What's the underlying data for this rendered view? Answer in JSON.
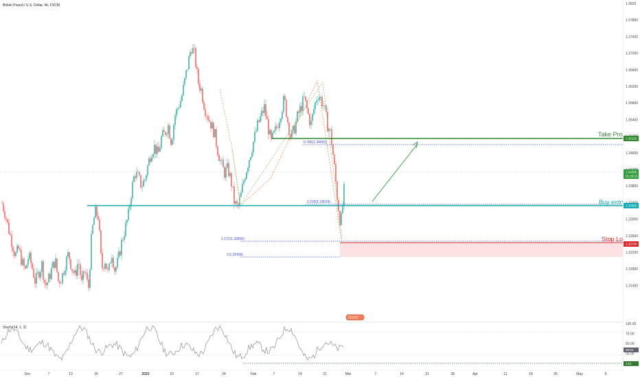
{
  "header": {
    "symbol_title": "British Pound / U.S. Dollar, 4h, FXCM"
  },
  "chart_data": {
    "type": "candlestick",
    "title": "British Pound / U.S. Dollar, 4h, FXCM",
    "y_axis": {
      "ticks": [
        "1.3820",
        "1.37800",
        "1.37400",
        "1.37000",
        "1.36600",
        "1.36200",
        "1.35800",
        "1.35400",
        "1.35000",
        "1.34600",
        "1.34200",
        "1.33800",
        "1.33400",
        "1.33000",
        "1.32600",
        "1.32200",
        "1.31800",
        "1.31400"
      ],
      "ylim": [
        1.312,
        1.384
      ]
    },
    "x_axis": {
      "ticks": [
        "Dec",
        "7",
        "13",
        "20",
        "27",
        "2022",
        "10",
        "17",
        "24",
        "Feb",
        "7",
        "14",
        "21",
        "Mar",
        "7",
        "14",
        "21",
        "28",
        "Apr",
        "11",
        "18",
        "25",
        "May",
        "9"
      ],
      "bold_ticks": [
        "2022"
      ]
    },
    "price_path": [
      [
        1.338,
        1.3355,
        1.332,
        1.329,
        1.326,
        1.3275,
        1.3245,
        1.3225,
        1.326,
        1.3235,
        1.32,
        1.322,
        1.324,
        1.319,
        1.3205,
        1.323,
        1.325,
        1.32
      ],
      [
        1.321,
        1.324,
        1.3265,
        1.3232,
        1.3213,
        1.325,
        1.3195,
        1.323,
        1.318,
        1.331,
        1.336,
        1.335,
        1.323,
        1.325,
        1.3215,
        1.327,
        1.3225,
        1.325
      ],
      [
        1.329,
        1.332,
        1.335,
        1.341,
        1.345,
        1.344,
        1.342,
        1.3435,
        1.347,
        1.35,
        1.351,
        1.349,
        1.353,
        1.354,
        1.356,
        1.352,
        1.358,
        1.36
      ],
      [
        1.362,
        1.366,
        1.37,
        1.374,
        1.372,
        1.366,
        1.364,
        1.36,
        1.358,
        1.356,
        1.354,
        1.35,
        1.347,
        1.345,
        1.346,
        1.343,
        1.338,
        1.337
      ],
      [
        1.34,
        1.344,
        1.347,
        1.35,
        1.353,
        1.356,
        1.358,
        1.36,
        1.356,
        1.352,
        1.354,
        1.356,
        1.359,
        1.362,
        1.357,
        1.353,
        1.355,
        1.358
      ],
      [
        1.36,
        1.362,
        1.359,
        1.356,
        1.36,
        1.363,
        1.362,
        1.36,
        1.356,
        1.354,
        1.347,
        1.339,
        1.333,
        1.341
      ]
    ],
    "current_price": "1.34259",
    "countdown": "01:26:15",
    "levels": [
      {
        "label": "Take Profit",
        "price": "1.35102",
        "color": "#2e8b2e"
      },
      {
        "label": "Buy entry",
        "price": "1.33580",
        "color": "#10aeb4"
      },
      {
        "label": "Stop Loss",
        "price": "1.32744",
        "color": "#d92b2b"
      }
    ],
    "fib_labels": [
      "0.786(1.34950)",
      "0.236(1.33624)",
      "1.272(1.32800)",
      "1(1.32456)"
    ],
    "indicator": {
      "name": "Stoch (14, 1, 3)",
      "ticks": [
        "100.00",
        "75.00",
        "50.00",
        "25.00",
        "0.00"
      ],
      "last_values": [
        "38.52",
        "3.51"
      ]
    },
    "event_badge": "EEEEE"
  },
  "colors": {
    "up": "#26a69a",
    "down": "#ef5350",
    "take_profit": "#2e8b2e",
    "buy_entry": "#10aeb4",
    "stop_loss": "#d92b2b",
    "stop_zone": "#fde2e4",
    "fib": "#3a4fd4",
    "arrow": "#2e9a3a"
  }
}
